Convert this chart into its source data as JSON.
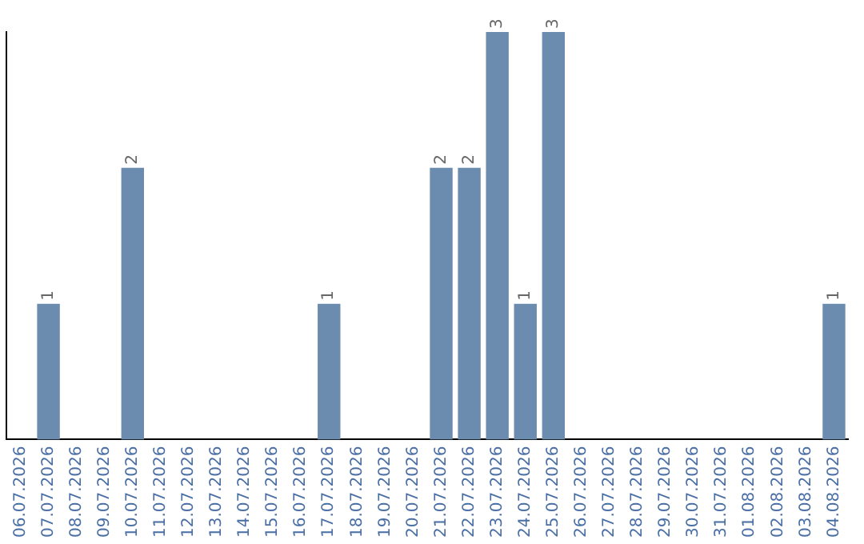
{
  "chart_data": {
    "type": "bar",
    "categories": [
      "06.07.2026",
      "07.07.2026",
      "08.07.2026",
      "09.07.2026",
      "10.07.2026",
      "11.07.2026",
      "12.07.2026",
      "13.07.2026",
      "14.07.2026",
      "15.07.2026",
      "16.07.2026",
      "17.07.2026",
      "18.07.2026",
      "19.07.2026",
      "20.07.2026",
      "21.07.2026",
      "22.07.2026",
      "23.07.2026",
      "24.07.2026",
      "25.07.2026",
      "26.07.2026",
      "27.07.2026",
      "28.07.2026",
      "29.07.2026",
      "30.07.2026",
      "31.07.2026",
      "01.08.2026",
      "02.08.2026",
      "03.08.2026",
      "04.08.2026"
    ],
    "values": [
      0,
      1,
      0,
      0,
      2,
      0,
      0,
      0,
      0,
      0,
      0,
      1,
      0,
      0,
      0,
      2,
      2,
      3,
      1,
      3,
      0,
      0,
      0,
      0,
      0,
      0,
      0,
      0,
      0,
      1
    ],
    "value_labels": [
      null,
      "1",
      null,
      null,
      "2",
      null,
      null,
      null,
      null,
      null,
      null,
      "1",
      null,
      null,
      null,
      "2",
      "2",
      "3",
      "1",
      "3",
      null,
      null,
      null,
      null,
      null,
      null,
      null,
      null,
      null,
      "1"
    ],
    "color": "#6b8cae",
    "grid": false,
    "legend": false,
    "tick_labels": "x"
  }
}
